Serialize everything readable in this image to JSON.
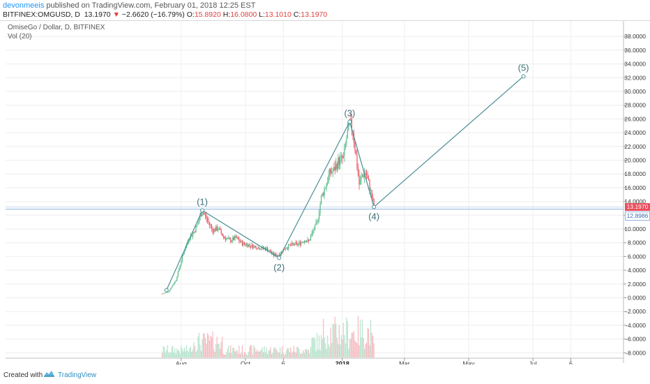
{
  "header": {
    "author": "devonmeeis",
    "published_text": " published on TradingView.com, February 01, 2018 12:25 EST",
    "symbol_line": "BITFINEX:OMGUSD, D",
    "last": "13.1970",
    "down_arrow": "▼",
    "change": "−2.6620 (−16.79%)",
    "o_label": "O:",
    "o_value": "15.8920",
    "h_label": "H:",
    "h_value": "16.0800",
    "l_label": "L:",
    "l_value": "13.1010",
    "c_label": "C:",
    "c_value": "13.1970"
  },
  "legend": {
    "title": "OmiseGo / Dollar, D, BITFINEX",
    "volume": "Vol (20)"
  },
  "price_scale": {
    "labels": [
      "38.0000",
      "36.0000",
      "34.0000",
      "32.0000",
      "30.0000",
      "28.0000",
      "26.0000",
      "24.0000",
      "22.0000",
      "20.0000",
      "18.0000",
      "16.0000",
      "14.0000",
      "12.0000",
      "10.0000",
      "8.0000",
      "6.0000",
      "4.0000",
      "2.0000",
      "0.0000",
      "-2.0000",
      "-4.0000",
      "-6.0000",
      "-8.0000"
    ],
    "current_price_label": "13.1970",
    "line_price_label": "12.8986"
  },
  "time_axis": {
    "labels": [
      "Aug",
      "Oct",
      "6",
      "2018",
      "Mar",
      "May",
      "Jul",
      "6"
    ]
  },
  "wave_labels": [
    "(1)",
    "(2)",
    "(3)",
    "(4)",
    "(5)"
  ],
  "footer": {
    "created_with": "Created with",
    "brand": "TradingView"
  },
  "colors": {
    "up": "#53b987",
    "down": "#eb4d5c",
    "wave": "#4a8f94",
    "hline": "#8fb4e0"
  },
  "chart_data": {
    "type": "candlestick",
    "symbol": "OMGUSD",
    "interval": "D",
    "y_range": [
      -8,
      38
    ],
    "x_range": [
      "2017-07-14",
      "2018-07-20"
    ],
    "current_price": 13.197,
    "horizontal_line": 12.8986,
    "wave_points": [
      {
        "label": "(1)",
        "date": "2017-08-21",
        "price": 12.7
      },
      {
        "label": "(2)",
        "date": "2017-11-02",
        "price": 5.8
      },
      {
        "label": "(3)",
        "date": "2018-01-08",
        "price": 25.6
      },
      {
        "label": "(4)",
        "date": "2018-01-31",
        "price": 13.2
      },
      {
        "label": "(5)",
        "date": "2018-06-22",
        "price": 32.2
      }
    ],
    "price_path": [
      [
        "2017-07-14",
        0.6
      ],
      [
        "2017-07-20",
        0.9
      ],
      [
        "2017-07-27",
        2.6
      ],
      [
        "2017-08-03",
        6.5
      ],
      [
        "2017-08-08",
        8.6
      ],
      [
        "2017-08-12",
        9.3
      ],
      [
        "2017-08-16",
        10.5
      ],
      [
        "2017-08-21",
        12.7
      ],
      [
        "2017-08-26",
        11.2
      ],
      [
        "2017-08-31",
        9.8
      ],
      [
        "2017-09-05",
        10.1
      ],
      [
        "2017-09-10",
        8.9
      ],
      [
        "2017-09-16",
        8.3
      ],
      [
        "2017-09-22",
        8.7
      ],
      [
        "2017-09-28",
        7.9
      ],
      [
        "2017-10-06",
        7.6
      ],
      [
        "2017-10-14",
        7.3
      ],
      [
        "2017-10-22",
        7.1
      ],
      [
        "2017-10-28",
        6.2
      ],
      [
        "2017-11-02",
        6.3
      ],
      [
        "2017-11-08",
        7.3
      ],
      [
        "2017-11-14",
        7.7
      ],
      [
        "2017-11-20",
        7.8
      ],
      [
        "2017-11-26",
        8.4
      ],
      [
        "2017-11-30",
        8.2
      ],
      [
        "2017-12-04",
        9.6
      ],
      [
        "2017-12-08",
        10.9
      ],
      [
        "2017-12-12",
        14.6
      ],
      [
        "2017-12-16",
        16.2
      ],
      [
        "2017-12-20",
        18.1
      ],
      [
        "2017-12-24",
        18.6
      ],
      [
        "2017-12-28",
        19.8
      ],
      [
        "2018-01-02",
        20.3
      ],
      [
        "2018-01-05",
        23.2
      ],
      [
        "2018-01-08",
        25.4
      ],
      [
        "2018-01-11",
        24.3
      ],
      [
        "2018-01-14",
        20.6
      ],
      [
        "2018-01-17",
        16.5
      ],
      [
        "2018-01-20",
        17.8
      ],
      [
        "2018-01-23",
        18.2
      ],
      [
        "2018-01-27",
        16.1
      ],
      [
        "2018-01-31",
        13.2
      ]
    ],
    "volume_series_name": "Vol (20)"
  }
}
